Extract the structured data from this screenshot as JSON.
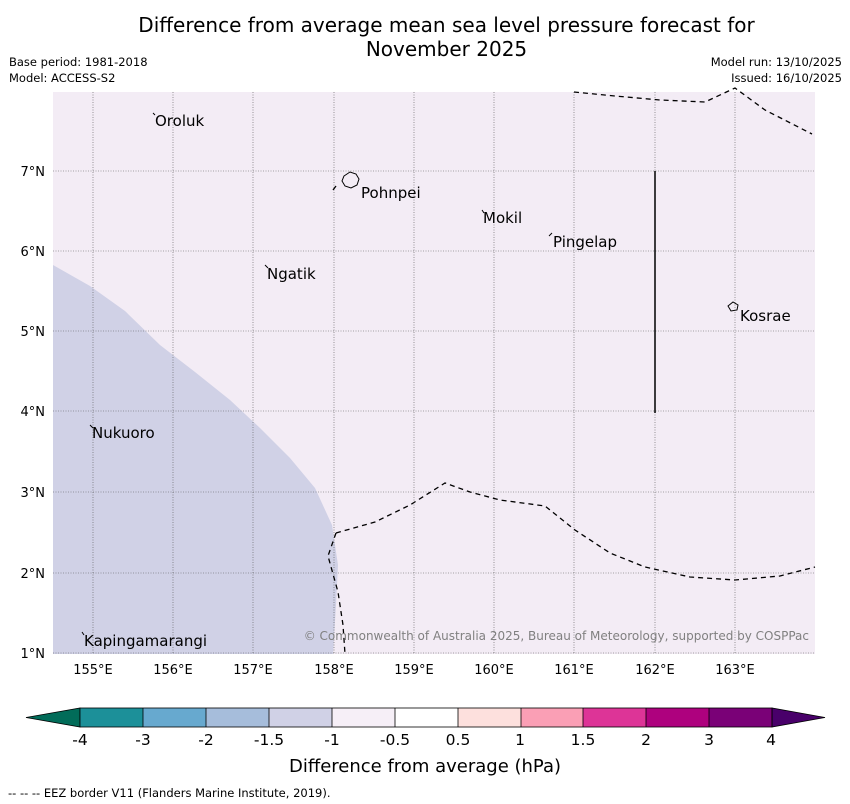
{
  "title": {
    "line1": "Difference from average mean sea level pressure forecast for",
    "line2": "November 2025"
  },
  "meta": {
    "base_period": "Base period: 1981-2018",
    "model": "Model: ACCESS-S2",
    "model_run": "Model run: 13/10/2025",
    "issued": "Issued: 16/10/2025"
  },
  "map": {
    "background_color": "#f3ecf5",
    "anomaly_fill_color": "#d0d1e6",
    "lat_ticks": [
      "7°N",
      "6°N",
      "5°N",
      "4°N",
      "3°N",
      "2°N",
      "1°N"
    ],
    "lon_ticks": [
      "155°E",
      "156°E",
      "157°E",
      "158°E",
      "159°E",
      "160°E",
      "161°E",
      "162°E",
      "163°E"
    ],
    "islands": {
      "oroluk": "Oroluk",
      "pohnpei": "Pohnpei",
      "mokil": "Mokil",
      "pingelap": "Pingelap",
      "ngatik": "Ngatik",
      "kosrae": "Kosrae",
      "nukuoro": "Nukuoro",
      "kapingamarangi": "Kapingamarangi"
    },
    "copyright": "© Commonwealth of Australia 2025, Bureau of Meteorology, supported by COSPPac"
  },
  "colorbar": {
    "title": "Difference from average (hPa)",
    "labels": [
      "-4",
      "-3",
      "-2",
      "-1.5",
      "-1",
      "-0.5",
      "0.5",
      "1",
      "1.5",
      "2",
      "3",
      "4"
    ],
    "colors": [
      "#1c9099",
      "#67a9cf",
      "#a6bddb",
      "#d0d1e6",
      "#f6eff7",
      "#ffffff",
      "#fde0dd",
      "#fa9fb5",
      "#dd3497",
      "#ae017e",
      "#7a0177"
    ],
    "low_extend_color": "#016c59",
    "high_extend_color": "#49006a"
  },
  "legend": {
    "eez": "--  --  -- EEZ border V11 (Flanders Marine Institute, 2019)."
  }
}
